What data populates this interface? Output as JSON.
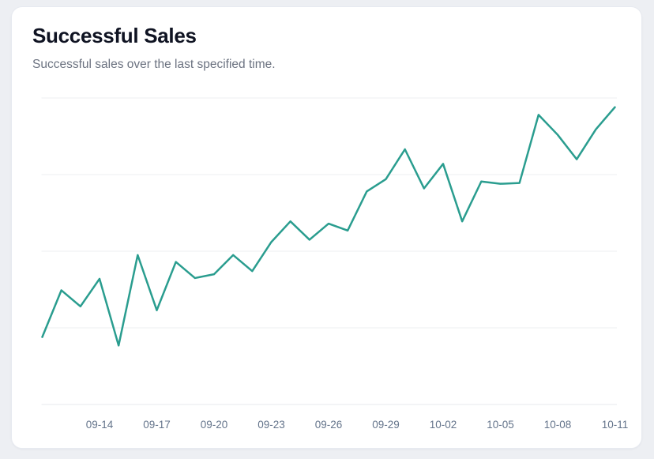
{
  "card": {
    "title": "Successful Sales",
    "subtitle": "Successful sales over the last specified time."
  },
  "colors": {
    "page_background": "#edeff3",
    "card_background": "#ffffff",
    "card_border": "#e7eaf0",
    "title": "#0f1322",
    "subtitle": "#6b7280",
    "tick_label": "#64748b",
    "line": "#2a9d8f",
    "gridline": "#edeff2",
    "axis_line": "#e7eaee"
  },
  "chart_data": {
    "type": "line",
    "title": "Successful Sales",
    "xlabel": "",
    "ylabel": "",
    "grid": true,
    "legend": false,
    "y_axis_labels_shown": false,
    "ylim": [
      0,
      40
    ],
    "y_gridlines": [
      0,
      10,
      20,
      30,
      40
    ],
    "x": [
      "09-11",
      "09-12",
      "09-13",
      "09-14",
      "09-15",
      "09-16",
      "09-17",
      "09-18",
      "09-19",
      "09-20",
      "09-21",
      "09-22",
      "09-23",
      "09-24",
      "09-25",
      "09-26",
      "09-27",
      "09-28",
      "09-29",
      "09-30",
      "10-01",
      "10-02",
      "10-03",
      "10-04",
      "10-05",
      "10-06",
      "10-07",
      "10-08",
      "10-09",
      "10-10",
      "10-11"
    ],
    "x_tick_labels": [
      "09-14",
      "09-17",
      "09-20",
      "09-23",
      "09-26",
      "09-29",
      "10-02",
      "10-05",
      "10-08",
      "10-11"
    ],
    "series": [
      {
        "name": "Successful Sales",
        "values": [
          8.8,
          14.9,
          12.8,
          16.4,
          7.7,
          19.5,
          12.3,
          18.6,
          16.5,
          17.0,
          19.5,
          17.4,
          21.2,
          23.9,
          21.5,
          23.6,
          22.7,
          27.8,
          29.4,
          33.3,
          28.2,
          31.4,
          23.9,
          29.1,
          28.8,
          28.9,
          37.8,
          35.2,
          32.0,
          35.9,
          38.8
        ]
      }
    ]
  }
}
